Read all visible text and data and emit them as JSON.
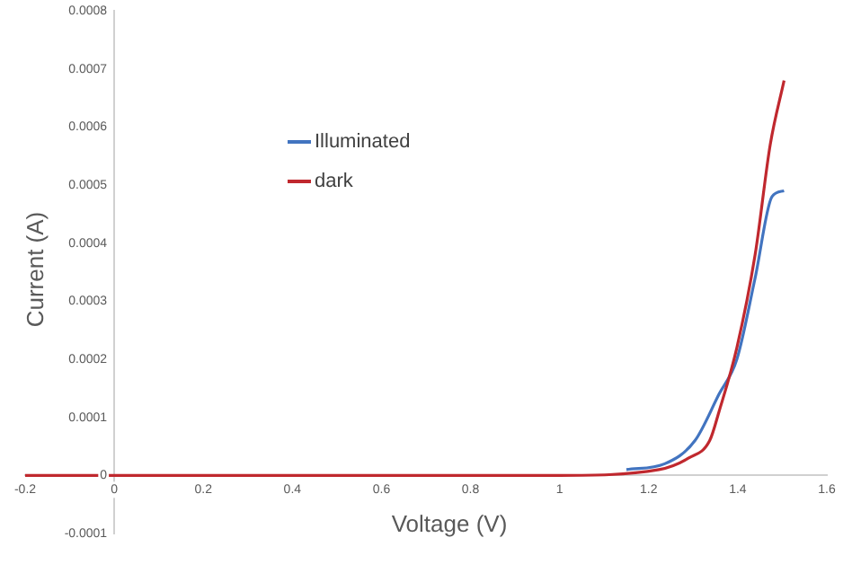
{
  "chart_data": {
    "type": "line",
    "xlabel": "Voltage (V)",
    "ylabel": "Current (A)",
    "xlim": [
      -0.2,
      1.6
    ],
    "xticks": [
      -0.2,
      0,
      0.2,
      0.4,
      0.6,
      0.8,
      1,
      1.2,
      1.4,
      1.6
    ],
    "ylim": [
      -0.0001,
      0.0008
    ],
    "yticks": [
      -0.0001,
      0,
      0.0001,
      0.0002,
      0.0003,
      0.0004,
      0.0005,
      0.0006,
      0.0007,
      0.0008
    ],
    "grid": false,
    "legend": "top left",
    "marker": "none",
    "line_style": "solid",
    "series": [
      {
        "name": "Illuminated",
        "color": "#4274c0",
        "x": [
          1.15,
          1.236,
          1.304,
          1.358,
          1.398,
          1.439,
          1.477,
          1.504
        ],
        "values": [
          1e-05,
          2e-05,
          6e-05,
          0.00014,
          0.0002,
          0.00034,
          0.00048,
          0.00049
        ]
      },
      {
        "name": "dark",
        "color": "#c0282e",
        "x": [
          -0.2,
          1.0,
          1.223,
          1.29,
          1.337,
          1.358,
          1.398,
          1.439,
          1.473,
          1.504
        ],
        "values": [
          0,
          0,
          1e-05,
          3e-05,
          6e-05,
          0.00011,
          0.00022,
          0.00038,
          0.00057,
          0.00068
        ]
      }
    ]
  }
}
